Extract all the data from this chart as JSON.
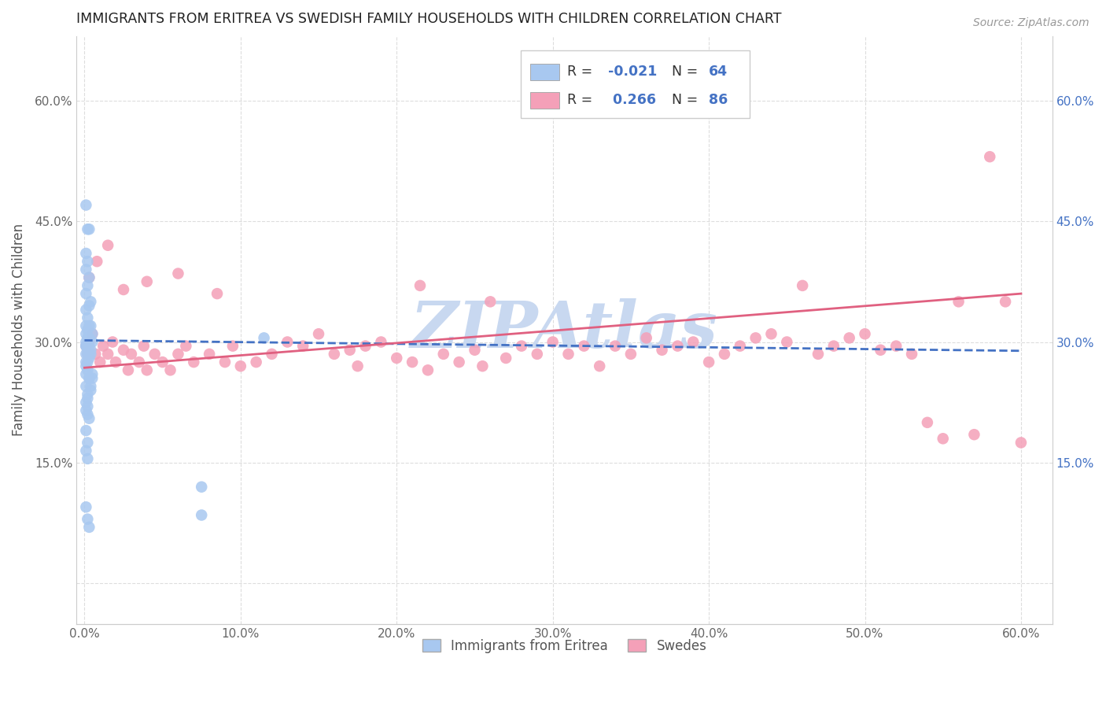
{
  "title": "IMMIGRANTS FROM ERITREA VS SWEDISH FAMILY HOUSEHOLDS WITH CHILDREN CORRELATION CHART",
  "source": "Source: ZipAtlas.com",
  "ylabel": "Family Households with Children",
  "x_tick_labels": [
    "0.0%",
    "10.0%",
    "20.0%",
    "30.0%",
    "40.0%",
    "50.0%",
    "60.0%"
  ],
  "x_ticks": [
    0.0,
    0.1,
    0.2,
    0.3,
    0.4,
    0.5,
    0.6
  ],
  "y_ticks": [
    0.0,
    0.15,
    0.3,
    0.45,
    0.6
  ],
  "y_tick_labels_left": [
    "",
    "15.0%",
    "30.0%",
    "45.0%",
    "60.0%"
  ],
  "y_tick_labels_right": [
    "",
    "15.0%",
    "30.0%",
    "45.0%",
    "60.0%"
  ],
  "xlim": [
    -0.005,
    0.62
  ],
  "ylim": [
    -0.05,
    0.68
  ],
  "legend_label1": "Immigrants from Eritrea",
  "legend_label2": "Swedes",
  "watermark": "ZIPAtlas",
  "blue_color": "#A8C8F0",
  "pink_color": "#F4A0B8",
  "blue_line_color": "#4472C4",
  "pink_line_color": "#E06080",
  "blue_scatter_x": [
    0.001,
    0.001,
    0.001,
    0.001,
    0.001,
    0.001,
    0.001,
    0.001,
    0.001,
    0.001,
    0.002,
    0.002,
    0.002,
    0.002,
    0.002,
    0.002,
    0.002,
    0.002,
    0.002,
    0.003,
    0.003,
    0.003,
    0.003,
    0.003,
    0.003,
    0.003,
    0.004,
    0.004,
    0.004,
    0.004,
    0.005,
    0.005,
    0.005,
    0.001,
    0.001,
    0.001,
    0.001,
    0.001,
    0.002,
    0.002,
    0.002,
    0.002,
    0.003,
    0.003,
    0.003,
    0.004,
    0.004,
    0.005,
    0.001,
    0.002,
    0.001,
    0.002,
    0.003,
    0.001,
    0.002,
    0.075,
    0.075,
    0.115,
    0.001,
    0.002,
    0.003,
    0.001,
    0.002
  ],
  "blue_scatter_y": [
    0.47,
    0.41,
    0.39,
    0.36,
    0.34,
    0.32,
    0.31,
    0.295,
    0.27,
    0.245,
    0.44,
    0.4,
    0.37,
    0.33,
    0.315,
    0.305,
    0.285,
    0.265,
    0.235,
    0.44,
    0.38,
    0.345,
    0.32,
    0.305,
    0.28,
    0.255,
    0.35,
    0.32,
    0.29,
    0.245,
    0.31,
    0.3,
    0.26,
    0.3,
    0.295,
    0.285,
    0.275,
    0.26,
    0.295,
    0.29,
    0.275,
    0.23,
    0.295,
    0.285,
    0.255,
    0.285,
    0.24,
    0.255,
    0.225,
    0.22,
    0.215,
    0.21,
    0.205,
    0.19,
    0.175,
    0.12,
    0.085,
    0.305,
    0.095,
    0.08,
    0.07,
    0.165,
    0.155
  ],
  "pink_scatter_x": [
    0.001,
    0.002,
    0.003,
    0.005,
    0.007,
    0.01,
    0.012,
    0.015,
    0.018,
    0.02,
    0.025,
    0.028,
    0.03,
    0.035,
    0.038,
    0.04,
    0.045,
    0.05,
    0.055,
    0.06,
    0.065,
    0.07,
    0.08,
    0.09,
    0.095,
    0.1,
    0.11,
    0.12,
    0.13,
    0.14,
    0.15,
    0.16,
    0.17,
    0.175,
    0.18,
    0.19,
    0.2,
    0.21,
    0.215,
    0.22,
    0.23,
    0.24,
    0.25,
    0.255,
    0.26,
    0.27,
    0.28,
    0.29,
    0.3,
    0.31,
    0.32,
    0.33,
    0.34,
    0.35,
    0.36,
    0.37,
    0.38,
    0.39,
    0.4,
    0.41,
    0.42,
    0.43,
    0.44,
    0.45,
    0.46,
    0.47,
    0.48,
    0.49,
    0.5,
    0.51,
    0.52,
    0.53,
    0.54,
    0.55,
    0.56,
    0.57,
    0.58,
    0.59,
    0.6,
    0.003,
    0.008,
    0.015,
    0.025,
    0.04,
    0.06,
    0.085
  ],
  "pink_scatter_y": [
    0.295,
    0.285,
    0.3,
    0.31,
    0.285,
    0.275,
    0.295,
    0.285,
    0.3,
    0.275,
    0.29,
    0.265,
    0.285,
    0.275,
    0.295,
    0.265,
    0.285,
    0.275,
    0.265,
    0.285,
    0.295,
    0.275,
    0.285,
    0.275,
    0.295,
    0.27,
    0.275,
    0.285,
    0.3,
    0.295,
    0.31,
    0.285,
    0.29,
    0.27,
    0.295,
    0.3,
    0.28,
    0.275,
    0.37,
    0.265,
    0.285,
    0.275,
    0.29,
    0.27,
    0.35,
    0.28,
    0.295,
    0.285,
    0.3,
    0.285,
    0.295,
    0.27,
    0.295,
    0.285,
    0.305,
    0.29,
    0.295,
    0.3,
    0.275,
    0.285,
    0.295,
    0.305,
    0.31,
    0.3,
    0.37,
    0.285,
    0.295,
    0.305,
    0.31,
    0.29,
    0.295,
    0.285,
    0.2,
    0.18,
    0.35,
    0.185,
    0.53,
    0.35,
    0.175,
    0.38,
    0.4,
    0.42,
    0.365,
    0.375,
    0.385,
    0.36
  ],
  "blue_trend_x": [
    0.0,
    0.6
  ],
  "blue_trend_y": [
    0.302,
    0.289
  ],
  "pink_trend_x": [
    0.0,
    0.6
  ],
  "pink_trend_y": [
    0.268,
    0.36
  ],
  "background_color": "#ffffff",
  "grid_color": "#dddddd",
  "title_color": "#222222",
  "axis_label_color": "#555555",
  "tick_color_left": "#666666",
  "tick_color_right": "#4472C4",
  "watermark_color": "#c8d8f0"
}
